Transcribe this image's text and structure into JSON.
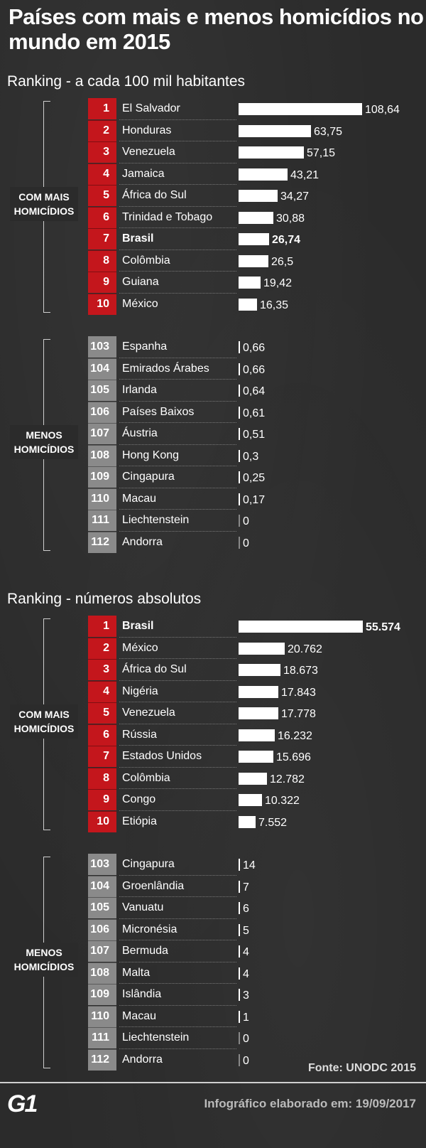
{
  "title": "Países com mais e menos homicídios no mundo em 2015",
  "chart_data": [
    {
      "type": "bar",
      "title": "Ranking - a cada 100 mil habitantes",
      "groups": [
        {
          "label": "COM MAIS HOMICÍDIOS",
          "rows": [
            {
              "rank": "1",
              "country": "El Salvador",
              "value": 108.64,
              "value_label": "108,64"
            },
            {
              "rank": "2",
              "country": "Honduras",
              "value": 63.75,
              "value_label": "63,75"
            },
            {
              "rank": "3",
              "country": "Venezuela",
              "value": 57.15,
              "value_label": "57,15"
            },
            {
              "rank": "4",
              "country": "Jamaica",
              "value": 43.21,
              "value_label": "43,21"
            },
            {
              "rank": "5",
              "country": "África do Sul",
              "value": 34.27,
              "value_label": "34,27"
            },
            {
              "rank": "6",
              "country": "Trinidad e Tobago",
              "value": 30.88,
              "value_label": "30,88"
            },
            {
              "rank": "7",
              "country": "Brasil",
              "value": 26.74,
              "value_label": "26,74",
              "highlight": true
            },
            {
              "rank": "8",
              "country": "Colômbia",
              "value": 26.5,
              "value_label": "26,5"
            },
            {
              "rank": "9",
              "country": "Guiana",
              "value": 19.42,
              "value_label": "19,42"
            },
            {
              "rank": "10",
              "country": "México",
              "value": 16.35,
              "value_label": "16,35"
            }
          ]
        },
        {
          "label": "MENOS HOMICÍDIOS",
          "rows": [
            {
              "rank": "103",
              "country": "Espanha",
              "value": 0.66,
              "value_label": "0,66"
            },
            {
              "rank": "104",
              "country": "Emirados Árabes",
              "value": 0.66,
              "value_label": "0,66"
            },
            {
              "rank": "105",
              "country": "Irlanda",
              "value": 0.64,
              "value_label": "0,64"
            },
            {
              "rank": "106",
              "country": "Países Baixos",
              "value": 0.61,
              "value_label": "0,61"
            },
            {
              "rank": "107",
              "country": "Áustria",
              "value": 0.51,
              "value_label": "0,51"
            },
            {
              "rank": "108",
              "country": "Hong Kong",
              "value": 0.3,
              "value_label": "0,3"
            },
            {
              "rank": "109",
              "country": "Cingapura",
              "value": 0.25,
              "value_label": "0,25"
            },
            {
              "rank": "110",
              "country": "Macau",
              "value": 0.17,
              "value_label": "0,17"
            },
            {
              "rank": "111",
              "country": "Liechtenstein",
              "value": 0,
              "value_label": "0"
            },
            {
              "rank": "112",
              "country": "Andorra",
              "value": 0,
              "value_label": "0"
            }
          ]
        }
      ]
    },
    {
      "type": "bar",
      "title": "Ranking - números absolutos",
      "groups": [
        {
          "label": "COM MAIS HOMICÍDIOS",
          "rows": [
            {
              "rank": "1",
              "country": "Brasil",
              "value": 55574,
              "value_label": "55.574",
              "highlight": true
            },
            {
              "rank": "2",
              "country": "México",
              "value": 20762,
              "value_label": "20.762"
            },
            {
              "rank": "3",
              "country": "África do Sul",
              "value": 18673,
              "value_label": "18.673"
            },
            {
              "rank": "4",
              "country": "Nigéria",
              "value": 17843,
              "value_label": "17.843"
            },
            {
              "rank": "5",
              "country": "Venezuela",
              "value": 17778,
              "value_label": "17.778"
            },
            {
              "rank": "6",
              "country": "Rússia",
              "value": 16232,
              "value_label": "16.232"
            },
            {
              "rank": "7",
              "country": "Estados Unidos",
              "value": 15696,
              "value_label": "15.696"
            },
            {
              "rank": "8",
              "country": "Colômbia",
              "value": 12782,
              "value_label": "12.782"
            },
            {
              "rank": "9",
              "country": "Congo",
              "value": 10322,
              "value_label": "10.322"
            },
            {
              "rank": "10",
              "country": "Etiópia",
              "value": 7552,
              "value_label": "7.552"
            }
          ]
        },
        {
          "label": "MENOS HOMICÍDIOS",
          "rows": [
            {
              "rank": "103",
              "country": "Cingapura",
              "value": 14,
              "value_label": "14"
            },
            {
              "rank": "104",
              "country": "Groenlândia",
              "value": 7,
              "value_label": "7"
            },
            {
              "rank": "105",
              "country": "Vanuatu",
              "value": 6,
              "value_label": "6"
            },
            {
              "rank": "106",
              "country": "Micronésia",
              "value": 5,
              "value_label": "5"
            },
            {
              "rank": "107",
              "country": "Bermuda",
              "value": 4,
              "value_label": "4"
            },
            {
              "rank": "108",
              "country": "Malta",
              "value": 4,
              "value_label": "4"
            },
            {
              "rank": "109",
              "country": "Islândia",
              "value": 3,
              "value_label": "3"
            },
            {
              "rank": "110",
              "country": "Macau",
              "value": 1,
              "value_label": "1"
            },
            {
              "rank": "111",
              "country": "Liechtenstein",
              "value": 0,
              "value_label": "0"
            },
            {
              "rank": "112",
              "country": "Andorra",
              "value": 0,
              "value_label": "0"
            }
          ]
        }
      ]
    }
  ],
  "source": "Fonte: UNODC 2015",
  "logo": "G1",
  "credit": "Infográfico elaborado em: 19/09/2017",
  "colors": {
    "top_rank": "#c4161c",
    "bottom_rank": "#8a8a8a",
    "bar": "#ffffff",
    "background": "#2b2b2b"
  }
}
